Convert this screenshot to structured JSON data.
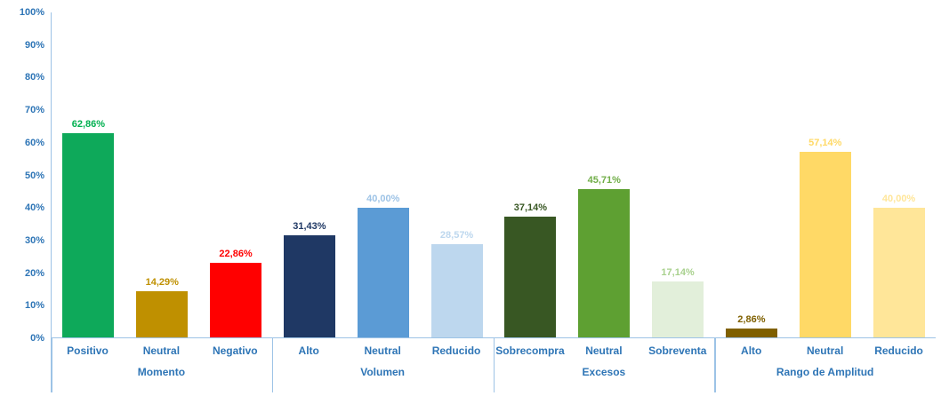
{
  "chart_data": {
    "type": "bar",
    "title": "",
    "grid": false,
    "legend": false,
    "y_axis": {
      "min": 0,
      "max": 100,
      "step": 10,
      "ylim": [
        0,
        100
      ],
      "ticks": [
        "0%",
        "10%",
        "20%",
        "30%",
        "40%",
        "50%",
        "60%",
        "70%",
        "80%",
        "90%",
        "100%"
      ]
    },
    "colors": {
      "axis_text": "#2E75B6",
      "axis_line": "#9DC3E6"
    },
    "groups": [
      {
        "name": "Momento",
        "bars": [
          {
            "category": "Positivo",
            "value": 62.86,
            "label": "62,86%",
            "bar_color": "#0EA95A",
            "label_color": "#00B050"
          },
          {
            "category": "Neutral",
            "value": 14.29,
            "label": "14,29%",
            "bar_color": "#BF9000",
            "label_color": "#BF9000"
          },
          {
            "category": "Negativo",
            "value": 22.86,
            "label": "22,86%",
            "bar_color": "#FF0000",
            "label_color": "#FF0000"
          }
        ]
      },
      {
        "name": "Volumen",
        "bars": [
          {
            "category": "Alto",
            "value": 31.43,
            "label": "31,43%",
            "bar_color": "#1F3864",
            "label_color": "#1F3864"
          },
          {
            "category": "Neutral",
            "value": 40.0,
            "label": "40,00%",
            "bar_color": "#5B9BD5",
            "label_color": "#9DC3E6"
          },
          {
            "category": "Reducido",
            "value": 28.57,
            "label": "28,57%",
            "bar_color": "#BDD7EE",
            "label_color": "#BDD7EE"
          }
        ]
      },
      {
        "name": "Excesos",
        "bars": [
          {
            "category": "Sobrecompra",
            "value": 37.14,
            "label": "37,14%",
            "bar_color": "#385723",
            "label_color": "#385723"
          },
          {
            "category": "Neutral",
            "value": 45.71,
            "label": "45,71%",
            "bar_color": "#5EA032",
            "label_color": "#70AD47"
          },
          {
            "category": "Sobreventa",
            "value": 17.14,
            "label": "17,14%",
            "bar_color": "#E2EFDA",
            "label_color": "#A9D18E"
          }
        ]
      },
      {
        "name": "Rango de Amplitud",
        "bars": [
          {
            "category": "Alto",
            "value": 2.86,
            "label": "2,86%",
            "bar_color": "#7F6000",
            "label_color": "#7F6000"
          },
          {
            "category": "Neutral",
            "value": 57.14,
            "label": "57,14%",
            "bar_color": "#FFD966",
            "label_color": "#FFD966"
          },
          {
            "category": "Reducido",
            "value": 40.0,
            "label": "40,00%",
            "bar_color": "#FFE699",
            "label_color": "#FFE699"
          }
        ]
      }
    ]
  }
}
